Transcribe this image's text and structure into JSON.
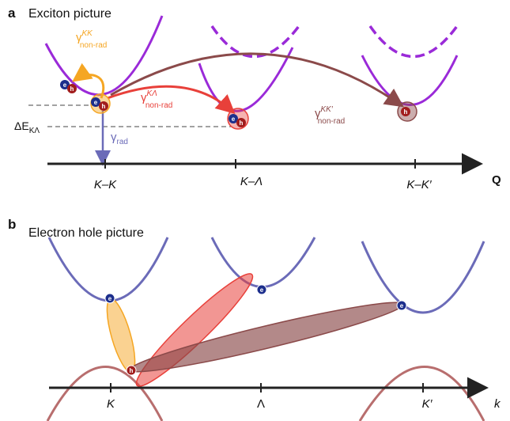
{
  "panel_a": {
    "letter": "a",
    "title": "Exciton picture",
    "axis_label": "Q",
    "ticks": [
      "K–K",
      "K–Λ",
      "K–K′"
    ],
    "gamma_symbol": "γ",
    "transitions": {
      "kk": {
        "sup": "KK",
        "sub": "non-rad"
      },
      "klambda": {
        "sup": "KΛ",
        "sub": "non-rad"
      },
      "kkprime": {
        "sup": "KK′",
        "sub": "non-rad"
      },
      "rad": {
        "sub": "rad"
      }
    },
    "energy_label": {
      "main": "ΔE",
      "sub": "KΛ"
    }
  },
  "panel_b": {
    "letter": "b",
    "title": "Electron hole picture",
    "axis_label": "k",
    "ticks": [
      "K",
      "Λ",
      "K′"
    ]
  },
  "particles": {
    "electron": "e",
    "hole": "h"
  },
  "colors": {
    "purple": "#9a2ad8",
    "orange": "#f5a623",
    "red": "#e8403a",
    "brown": "#8b4a4a",
    "blue": "#6b6bb8",
    "electron": "#1c2e8c",
    "hole": "#a11d1d",
    "band_valence": "#b86e6e"
  }
}
